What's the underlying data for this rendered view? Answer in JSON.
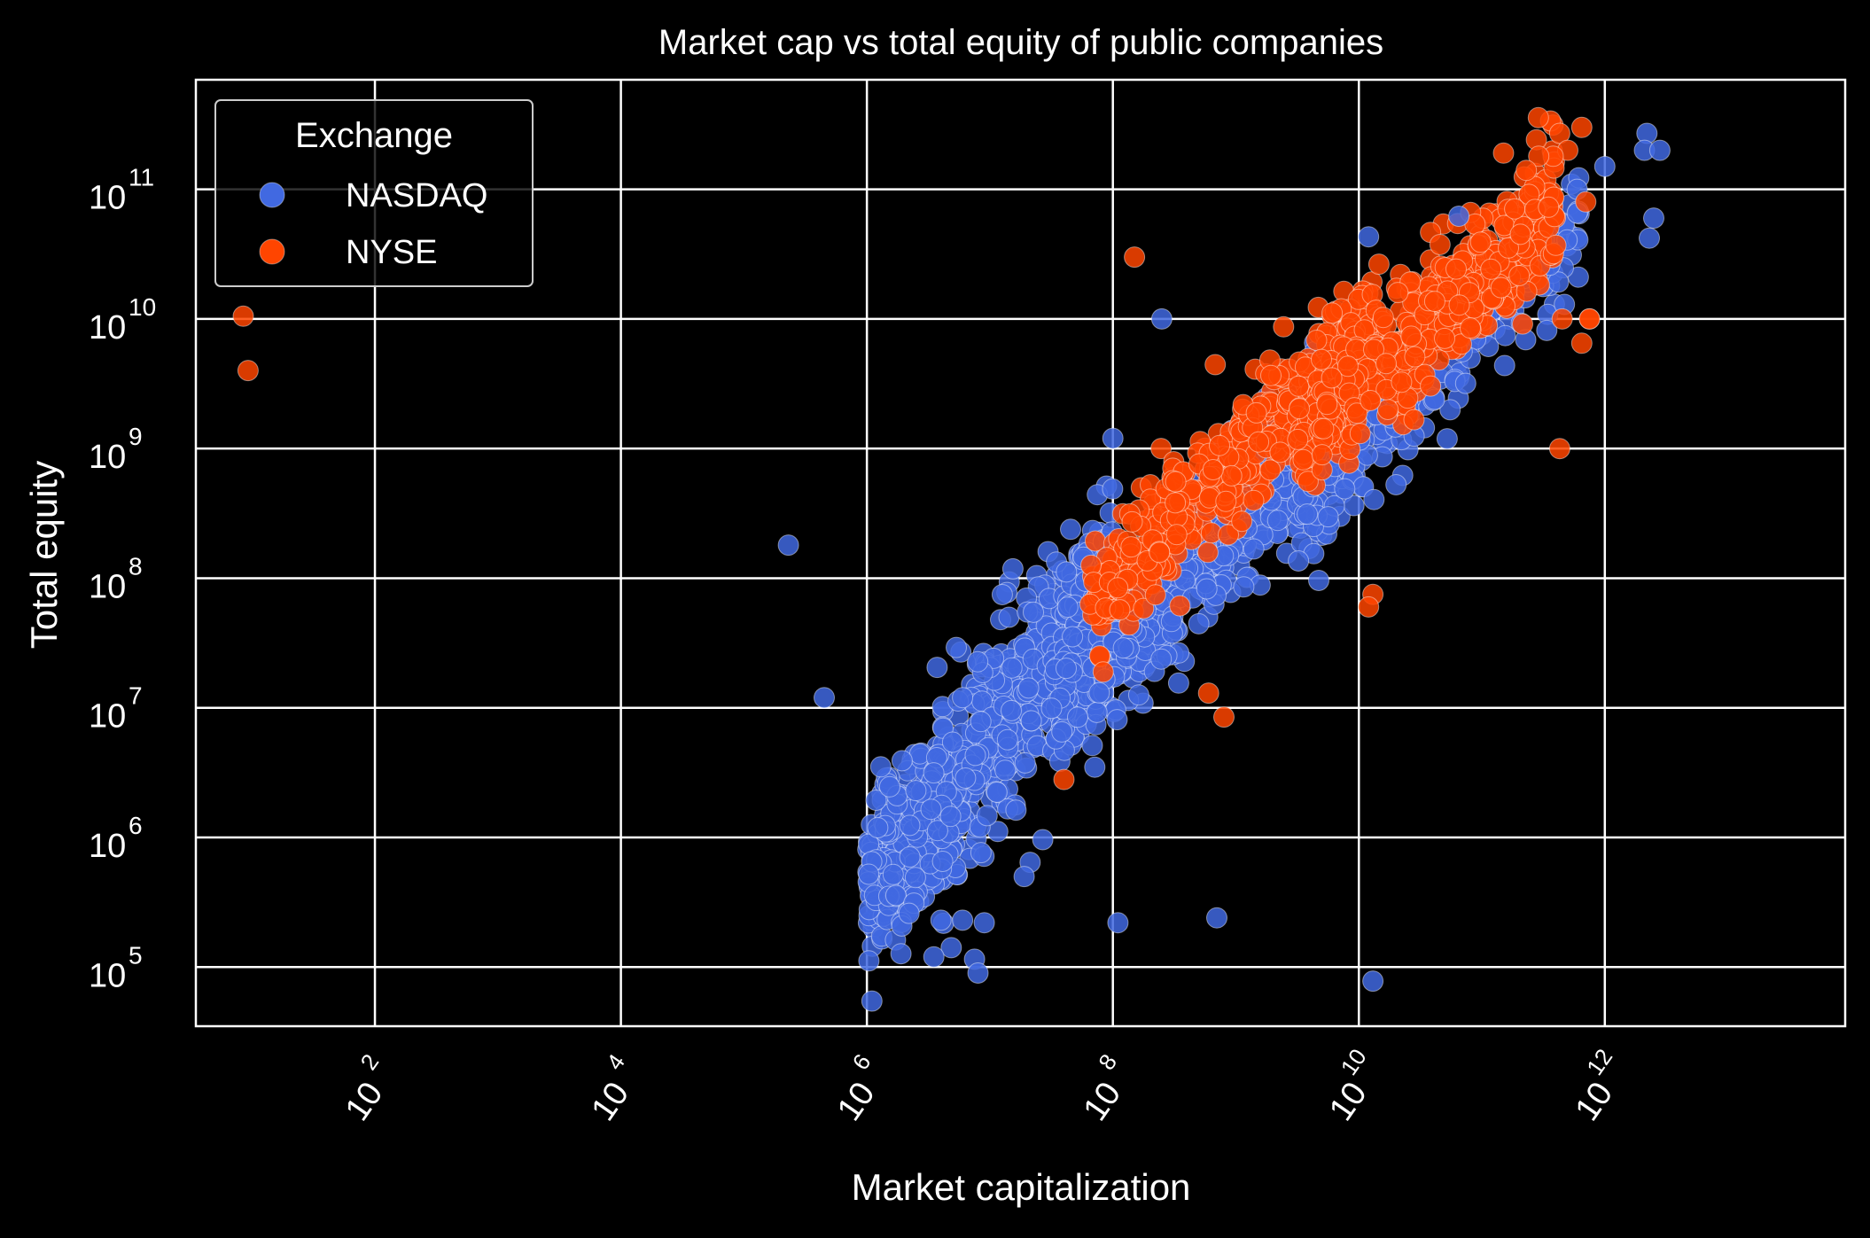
{
  "chart_data": {
    "type": "scatter",
    "title": "Market cap vs total equity of public companies",
    "xlabel": "Market capitalization",
    "ylabel": "Total equity",
    "xscale": "log",
    "yscale": "log",
    "xlim": [
      3.5,
      90000000000000
    ],
    "ylim": [
      35000,
      700000000000
    ],
    "xtick_exponents": [
      2,
      4,
      6,
      8,
      10,
      12
    ],
    "ytick_exponents": [
      5,
      6,
      7,
      8,
      9,
      10,
      11
    ],
    "tick_base": "10",
    "grid": true,
    "background": "#000000",
    "grid_color": "#ffffff",
    "legend": {
      "title": "Exchange",
      "placement": "upper-left",
      "entries": [
        {
          "name": "NASDAQ",
          "color": "#4169E1"
        },
        {
          "name": "NYSE",
          "color": "#FF4500"
        }
      ]
    },
    "series": [
      {
        "name": "NASDAQ",
        "color": "#4169E1",
        "clusters": [
          {
            "x_log": [
              6.0,
              8.0
            ],
            "y_log": [
              5.6,
              8.0
            ],
            "count": 900,
            "slope": 0.95,
            "spread": 0.55
          },
          {
            "x_log": [
              7.5,
              10.0
            ],
            "y_log": [
              7.0,
              9.5
            ],
            "count": 900,
            "slope": 0.95,
            "spread": 0.45
          },
          {
            "x_log": [
              9.5,
              11.8
            ],
            "y_log": [
              8.5,
              10.8
            ],
            "count": 260,
            "slope": 0.95,
            "spread": 0.4
          }
        ],
        "points": [
          [
            2200000000000.0,
            270000000000.0
          ],
          [
            2100000000000.0,
            200000000000.0
          ],
          [
            2800000000000.0,
            200000000000.0
          ],
          [
            1000000000000.0,
            150000000000.0
          ],
          [
            2500000000000.0,
            60000000000.0
          ],
          [
            2300000000000.0,
            42000000000.0
          ],
          [
            65000000000.0,
            62000000000.0
          ],
          [
            12000000000.0,
            43000000000.0
          ],
          [
            230000.0,
            180000000.0
          ],
          [
            250000000.0,
            10000000000.0
          ],
          [
            100000000.0,
            1200000000.0
          ],
          [
            4000000.0,
            230000.0
          ],
          [
            3500000.0,
            120000.0
          ],
          [
            7500000.0,
            115000.0
          ],
          [
            2200000.0,
            260000.0
          ],
          [
            9000000.0,
            220000.0
          ],
          [
            110000000.0,
            220000.0
          ],
          [
            700000000.0,
            240000.0
          ],
          [
            13000000000.0,
            78000.0
          ],
          [
            6000000.0,
            230000.0
          ],
          [
            19000000.0,
            500000.0
          ],
          [
            6000000.0,
            12000000.0
          ],
          [
            450000.0,
            12000000.0
          ],
          [
            2500000.0,
            2300000.0
          ],
          [
            8000000.0,
            90000.0
          ]
        ]
      },
      {
        "name": "NYSE",
        "color": "#FF4500",
        "clusters": [
          {
            "x_log": [
              7.8,
              10.2
            ],
            "y_log": [
              7.8,
              10.0
            ],
            "count": 450,
            "slope": 0.9,
            "spread": 0.4
          },
          {
            "x_log": [
              9.5,
              11.6
            ],
            "y_log": [
              9.0,
              10.9
            ],
            "count": 500,
            "slope": 0.85,
            "spread": 0.4
          }
        ],
        "points": [
          [
            8.5,
            10500000000.0
          ],
          [
            9.3,
            4000000000.0
          ],
          [
            150000000.0,
            30000000000.0
          ],
          [
            650000000000.0,
            300000000000.0
          ],
          [
            430000000000.0,
            270000000000.0
          ],
          [
            500000000000.0,
            200000000000.0
          ],
          [
            150000000000.0,
            190000000000.0
          ],
          [
            380000000000.0,
            180000000000.0
          ],
          [
            290000000000.0,
            180000000000.0
          ],
          [
            230000000000.0,
            140000000000.0
          ],
          [
            700000000000.0,
            80000000000.0
          ],
          [
            400000000000.0,
            37000000000.0
          ],
          [
            750000000000.0,
            10000000000.0
          ],
          [
            450000000000.0,
            10000000000.0
          ],
          [
            650000000000.0,
            6500000000.0
          ],
          [
            430000000000.0,
            1000000000.0
          ],
          [
            13000000000.0,
            75000000.0
          ],
          [
            12000000000.0,
            60000000.0
          ],
          [
            800000000.0,
            8500000.0
          ],
          [
            40000000.0,
            2800000.0
          ],
          [
            600000000.0,
            13000000.0
          ],
          [
            750000000000.0,
            10000000000.0
          ]
        ]
      }
    ]
  }
}
